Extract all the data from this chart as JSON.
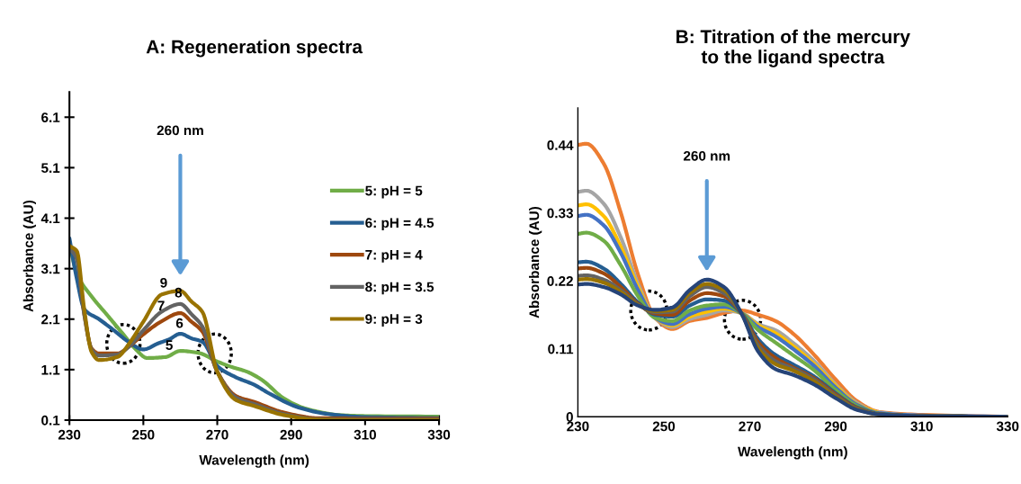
{
  "chart_data": [
    {
      "type": "line",
      "title": "A: Regeneration spectra",
      "xlabel": "Wavelength (nm)",
      "ylabel": "Absorbance (AU)",
      "xlim": [
        230,
        330
      ],
      "xticks": [
        230,
        250,
        270,
        290,
        310,
        330
      ],
      "ylim": [
        0.1,
        6.6
      ],
      "yticks": [
        0.1,
        1.1,
        2.1,
        3.1,
        4.1,
        5.1,
        6.1
      ],
      "grid": false,
      "legend": "right",
      "marker": "none",
      "line_style": "solid",
      "series": [
        {
          "name": "5: pH = 5",
          "color": "#70ad47",
          "x": [
            230,
            232,
            236,
            240,
            244,
            248,
            251,
            256,
            260,
            265,
            270,
            274,
            278,
            282,
            288,
            293,
            297,
            303,
            310,
            330
          ],
          "values": [
            3.6,
            3.0,
            2.55,
            2.2,
            1.85,
            1.5,
            1.33,
            1.35,
            1.47,
            1.43,
            1.26,
            1.15,
            1.06,
            0.9,
            0.53,
            0.35,
            0.27,
            0.2,
            0.18,
            0.17
          ]
        },
        {
          "name": "6: pH = 4.5",
          "color": "#255e91",
          "x": [
            230,
            232,
            234,
            238,
            242,
            246,
            250,
            254,
            257,
            260,
            263,
            266,
            270,
            275,
            280,
            284,
            292,
            300,
            310,
            330
          ],
          "values": [
            3.7,
            2.9,
            2.3,
            2.1,
            1.88,
            1.65,
            1.5,
            1.62,
            1.7,
            1.81,
            1.72,
            1.65,
            1.17,
            0.95,
            0.8,
            0.63,
            0.35,
            0.22,
            0.16,
            0.14
          ]
        },
        {
          "name": "7: pH = 4",
          "color": "#9e480e",
          "x": [
            230,
            232,
            234,
            236,
            238,
            243,
            246,
            250,
            255,
            260,
            263,
            266,
            270,
            275,
            280,
            288,
            297,
            310,
            330
          ],
          "values": [
            3.55,
            3.3,
            2.2,
            1.52,
            1.42,
            1.42,
            1.55,
            1.8,
            2.06,
            2.22,
            2.05,
            1.85,
            1.06,
            0.58,
            0.46,
            0.25,
            0.14,
            0.13,
            0.13
          ]
        },
        {
          "name": "8: pH = 3.5",
          "color": "#636363",
          "x": [
            230,
            232,
            234,
            236,
            238,
            243,
            246,
            250,
            255,
            260,
            263,
            266,
            270,
            275,
            280,
            288,
            297,
            310,
            330
          ],
          "values": [
            3.5,
            3.3,
            2.2,
            1.5,
            1.38,
            1.4,
            1.55,
            1.88,
            2.25,
            2.4,
            2.2,
            1.95,
            1.06,
            0.55,
            0.42,
            0.22,
            0.12,
            0.11,
            0.11
          ]
        },
        {
          "name": "9: pH = 3",
          "color": "#997300",
          "x": [
            230,
            232,
            234,
            236,
            238,
            243,
            246,
            250,
            255,
            260,
            263,
            266,
            270,
            275,
            280,
            288,
            297,
            310,
            330
          ],
          "values": [
            3.55,
            3.45,
            2.3,
            1.45,
            1.29,
            1.35,
            1.6,
            2.05,
            2.59,
            2.66,
            2.45,
            2.24,
            1.06,
            0.5,
            0.38,
            0.2,
            0.11,
            0.1,
            0.1
          ]
        }
      ],
      "annotations": [
        "260 nm",
        "9",
        "8",
        "7",
        "6",
        "5"
      ]
    },
    {
      "type": "line",
      "title": "B: Titration of the mercury\nto the ligand spectra",
      "xlabel": "Wavelength (nm)",
      "ylabel": "Absorbance (AU)",
      "xlim": [
        230,
        330
      ],
      "xticks": [
        230,
        250,
        270,
        290,
        310,
        330
      ],
      "ylim": [
        0,
        0.5
      ],
      "yticks": [
        0,
        0.11,
        0.22,
        0.33,
        0.44
      ],
      "grid": false,
      "marker": "none",
      "line_style": "solid",
      "x": [
        230,
        232,
        236,
        240,
        244,
        248,
        252,
        256,
        260,
        264,
        268,
        272,
        276,
        280,
        285,
        290,
        295,
        300,
        310,
        330
      ],
      "series": [
        {
          "color": "#ed7d31",
          "values": [
            0.44,
            0.442,
            0.41,
            0.33,
            0.23,
            0.16,
            0.142,
            0.155,
            0.16,
            0.168,
            0.172,
            0.165,
            0.155,
            0.135,
            0.1,
            0.06,
            0.025,
            0.008,
            0.003,
            0
          ]
        },
        {
          "color": "#a5a5a5",
          "values": [
            0.364,
            0.366,
            0.345,
            0.29,
            0.215,
            0.16,
            0.145,
            0.158,
            0.165,
            0.172,
            0.168,
            0.15,
            0.14,
            0.12,
            0.09,
            0.052,
            0.022,
            0.007,
            0.002,
            0
          ]
        },
        {
          "color": "#ffc000",
          "values": [
            0.342,
            0.344,
            0.325,
            0.275,
            0.21,
            0.16,
            0.148,
            0.162,
            0.17,
            0.175,
            0.168,
            0.148,
            0.135,
            0.115,
            0.085,
            0.05,
            0.02,
            0.006,
            null,
            null
          ]
        },
        {
          "color": "#4472c4",
          "values": [
            0.325,
            0.327,
            0.31,
            0.265,
            0.205,
            0.16,
            0.15,
            0.166,
            0.175,
            0.178,
            0.168,
            0.145,
            0.13,
            0.11,
            0.082,
            0.047,
            0.019,
            0.006,
            0.002,
            0
          ]
        },
        {
          "color": "#70ad47",
          "values": [
            0.296,
            0.298,
            0.285,
            0.245,
            0.195,
            0.16,
            0.155,
            0.172,
            0.18,
            0.182,
            0.168,
            0.14,
            0.12,
            0.1,
            0.075,
            0.043,
            0.017,
            0.005,
            0.001,
            0
          ]
        },
        {
          "color": "#255e91",
          "values": [
            0.25,
            0.251,
            0.24,
            0.215,
            0.185,
            0.165,
            0.162,
            0.18,
            0.19,
            0.188,
            0.168,
            0.125,
            0.1,
            0.085,
            0.065,
            0.038,
            0.015,
            0.005,
            0.001,
            0
          ]
        },
        {
          "color": "#9e480e",
          "values": [
            0.24,
            0.241,
            0.232,
            0.21,
            0.183,
            0.167,
            0.165,
            0.188,
            0.2,
            0.195,
            0.168,
            0.12,
            0.095,
            0.08,
            0.062,
            0.036,
            0.014,
            0.004,
            0.001,
            0
          ]
        },
        {
          "color": "#636363",
          "values": [
            0.228,
            0.229,
            0.222,
            0.205,
            0.182,
            0.169,
            0.17,
            0.195,
            0.21,
            0.2,
            0.168,
            0.115,
            0.09,
            0.078,
            0.06,
            0.034,
            0.013,
            0.004,
            0.001,
            0
          ]
        },
        {
          "color": "#997300",
          "values": [
            0.222,
            0.223,
            0.217,
            0.202,
            0.181,
            0.171,
            0.173,
            0.2,
            0.215,
            0.205,
            0.168,
            0.11,
            0.085,
            0.075,
            0.057,
            0.032,
            0.012,
            0.004,
            0.001,
            0
          ]
        },
        {
          "color": "#264478",
          "values": [
            0.214,
            0.215,
            0.21,
            0.198,
            0.18,
            0.173,
            0.177,
            0.205,
            0.222,
            0.21,
            0.168,
            0.105,
            0.077,
            0.068,
            0.052,
            0.03,
            0.011,
            0.004,
            0.001,
            0
          ]
        }
      ],
      "annotations": [
        "260 nm"
      ]
    }
  ]
}
